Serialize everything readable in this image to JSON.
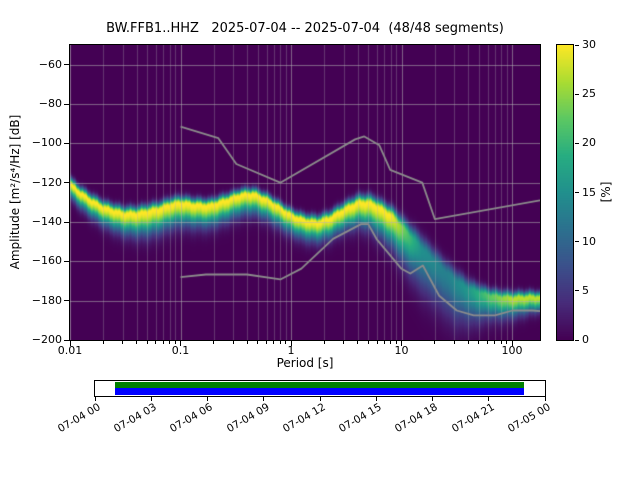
{
  "title": "BW.FFB1..HHZ   2025-07-04 -- 2025-07-04  (48/48 segments)",
  "chart_data": {
    "type": "heatmap",
    "title": "BW.FFB1..HHZ   2025-07-04 -- 2025-07-04  (48/48 segments)",
    "xlabel": "Period [s]",
    "ylabel": "Amplitude [m²/s⁴/Hz] [dB]",
    "xscale": "log",
    "xlim": [
      0.01,
      179
    ],
    "ylim": [
      -200,
      -50
    ],
    "x_tick_values": [
      0.01,
      0.1,
      1,
      10,
      100
    ],
    "x_tick_labels": [
      "0.01",
      "0.1",
      "1",
      "10",
      "100"
    ],
    "y_tick_values": [
      -200,
      -180,
      -160,
      -140,
      -120,
      -100,
      -80,
      -60
    ],
    "y_tick_labels": [
      "−200",
      "−180",
      "−160",
      "−140",
      "−120",
      "−100",
      "−80",
      "−60"
    ],
    "grid": true,
    "background_color": "#440154",
    "grid_color": "#b4b4b4",
    "colorbar": {
      "label": "[%]",
      "min": 0,
      "max": 30,
      "tick_values": [
        0,
        5,
        10,
        15,
        20,
        25,
        30
      ],
      "tick_labels": [
        "0",
        "5",
        "10",
        "15",
        "20",
        "25",
        "30"
      ],
      "colormap": "viridis"
    },
    "psd_ridge": {
      "periods": [
        0.01,
        0.012,
        0.015,
        0.02,
        0.03,
        0.04,
        0.05,
        0.065,
        0.08,
        0.1,
        0.13,
        0.18,
        0.25,
        0.35,
        0.45,
        0.6,
        0.8,
        1.0,
        1.3,
        1.7,
        2.2,
        3.0,
        4.0,
        5.0,
        6.0,
        8.0,
        10,
        13,
        17,
        22,
        30,
        40,
        55,
        75,
        100,
        140,
        179
      ],
      "db": [
        -121,
        -125,
        -129,
        -133,
        -136,
        -136,
        -135,
        -133.5,
        -131.5,
        -130.5,
        -131.5,
        -132,
        -129.5,
        -126.5,
        -126,
        -129,
        -133.5,
        -137,
        -139.5,
        -140.5,
        -138.5,
        -134,
        -130.5,
        -130.5,
        -132.5,
        -137,
        -143,
        -150,
        -157,
        -163,
        -170,
        -174.5,
        -177,
        -178.5,
        -179,
        -178.5,
        -178.5
      ]
    },
    "ridge_peak_percent": {
      "periods": [
        0.01,
        8,
        11,
        15,
        25,
        40,
        60,
        100,
        179
      ],
      "percent": [
        30,
        30,
        22,
        15,
        13,
        16,
        22,
        27,
        27
      ]
    },
    "spread_db": {
      "periods": [
        0.01,
        0.05,
        0.3,
        1,
        3,
        8,
        15,
        30,
        60,
        179
      ],
      "above": [
        2.2,
        2.5,
        2.2,
        2.2,
        2.5,
        3,
        4.5,
        4,
        2.5,
        2
      ],
      "below": [
        4,
        7,
        6,
        5.5,
        6,
        9,
        13,
        13,
        7,
        4
      ]
    },
    "noise_models": {
      "color": "#8c8c8c",
      "nhnm": [
        [
          0.1,
          -91.5
        ],
        [
          0.22,
          -97.4
        ],
        [
          0.32,
          -110.5
        ],
        [
          0.8,
          -120
        ],
        [
          3.8,
          -98
        ],
        [
          4.6,
          -96.5
        ],
        [
          6.3,
          -101
        ],
        [
          7.9,
          -113.5
        ],
        [
          15.4,
          -120
        ],
        [
          20,
          -138.5
        ],
        [
          179,
          -129
        ]
      ],
      "nlnm": [
        [
          0.1,
          -168
        ],
        [
          0.17,
          -166.7
        ],
        [
          0.4,
          -166.7
        ],
        [
          0.8,
          -169.2
        ],
        [
          1.24,
          -163.7
        ],
        [
          2.4,
          -148.6
        ],
        [
          4.3,
          -141.1
        ],
        [
          5,
          -141.1
        ],
        [
          6,
          -149
        ],
        [
          10,
          -163.8
        ],
        [
          12,
          -166.2
        ],
        [
          15.6,
          -162.1
        ],
        [
          21.9,
          -177.5
        ],
        [
          31.6,
          -185
        ],
        [
          45,
          -187.5
        ],
        [
          70,
          -187.5
        ],
        [
          101,
          -185
        ],
        [
          154,
          -185
        ],
        [
          179,
          -185.3
        ]
      ]
    },
    "timeline": {
      "tick_labels": [
        "07-04 00",
        "07-04 03",
        "07-04 06",
        "07-04 09",
        "07-04 12",
        "07-04 15",
        "07-04 18",
        "07-04 21",
        "07-05 00"
      ],
      "top_bar_color": "#008000",
      "bottom_bar_color": "#0000ff",
      "coverage_start_frac": 0.045,
      "coverage_end_frac": 0.953
    }
  }
}
